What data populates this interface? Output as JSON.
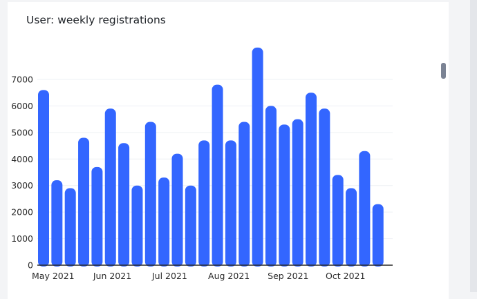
{
  "card": {
    "title": "User: weekly registrations"
  },
  "chart_data": {
    "type": "bar",
    "title": "User: weekly registrations",
    "xlabel": "",
    "ylabel": "",
    "ylim": [
      0,
      8000
    ],
    "yticks": [
      0,
      1000,
      2000,
      3000,
      4000,
      5000,
      6000,
      7000
    ],
    "xtick_labels": [
      "May 2021",
      "Jun 2021",
      "Jul 2021",
      "Aug 2021",
      "Sep 2021",
      "Oct 2021"
    ],
    "grid": true,
    "bar_color": "#3366ff",
    "categories": [
      "2021-04-26",
      "2021-05-03",
      "2021-05-10",
      "2021-05-17",
      "2021-05-24",
      "2021-05-31",
      "2021-06-07",
      "2021-06-14",
      "2021-06-21",
      "2021-06-28",
      "2021-07-05",
      "2021-07-12",
      "2021-07-19",
      "2021-07-26",
      "2021-08-02",
      "2021-08-09",
      "2021-08-16",
      "2021-08-23",
      "2021-08-30",
      "2021-09-06",
      "2021-09-13",
      "2021-09-20",
      "2021-09-27",
      "2021-10-04",
      "2021-10-11",
      "2021-10-18"
    ],
    "series": [
      {
        "values": [
          6600,
          3200,
          2900,
          4800,
          3700,
          5900,
          4600,
          3000,
          5400,
          3300,
          4200,
          3000,
          4700,
          6800,
          4700,
          5400,
          8200,
          6000,
          5300,
          5500,
          6500,
          5900,
          3400,
          2900,
          4300,
          2300
        ]
      }
    ]
  }
}
